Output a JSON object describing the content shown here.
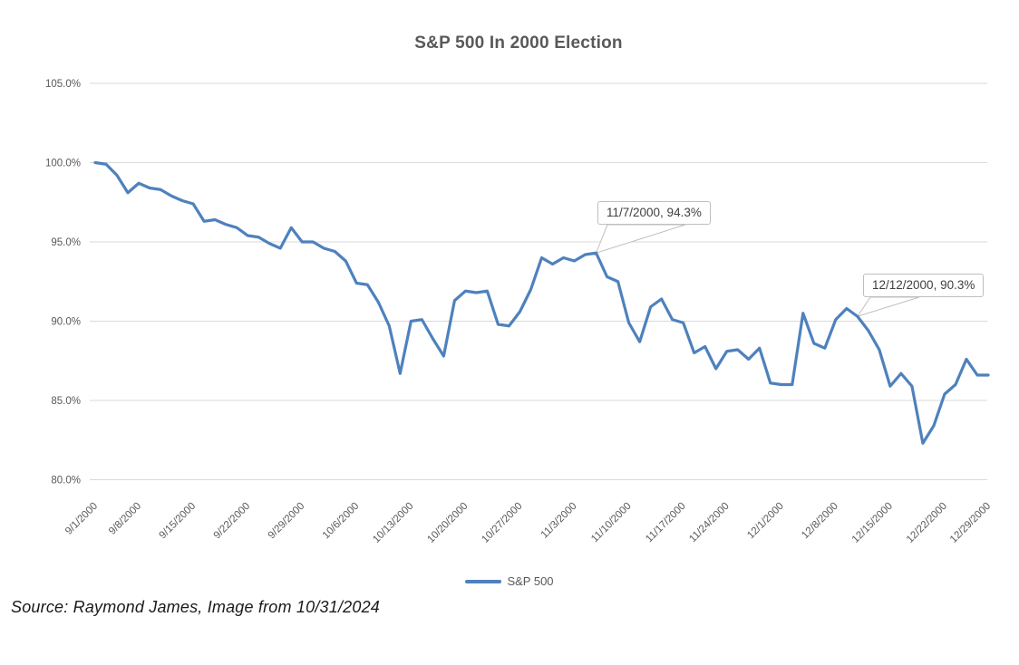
{
  "page": {
    "background": "#ffffff"
  },
  "source_note": "Source: Raymond James, Image from 10/31/2024",
  "chart_data": {
    "type": "line",
    "title": "S&P 500 In 2000 Election",
    "title_color": "#595959",
    "axis_label_color": "#595959",
    "gridline_color": "#D9D9D9",
    "callout_border_color": "#BFBFBF",
    "ylim": [
      80,
      105
    ],
    "y_tick_step": 5,
    "grid": "horizontal",
    "y_tick_labels": [
      "105.0%",
      "100.0%",
      "95.0%",
      "90.0%",
      "85.0%",
      "80.0%"
    ],
    "x_tick_labels": [
      "9/1/2000",
      "9/8/2000",
      "9/15/2000",
      "9/22/2000",
      "9/29/2000",
      "10/6/2000",
      "10/13/2000",
      "10/20/2000",
      "10/27/2000",
      "11/3/2000",
      "11/10/2000",
      "11/17/2000",
      "11/24/2000",
      "12/1/2000",
      "12/8/2000",
      "12/15/2000",
      "12/22/2000",
      "12/29/2000"
    ],
    "legend": {
      "position": "bottom",
      "label": "S&P 500"
    },
    "annotations": [
      {
        "date": "11/7/2000",
        "value": 94.3,
        "label": "11/7/2000, 94.3%"
      },
      {
        "date": "12/12/2000",
        "value": 90.3,
        "label": "12/12/2000, 90.3%"
      }
    ],
    "series": [
      {
        "name": "S&P 500",
        "color": "#4E81BD",
        "x": [
          "9/1/2000",
          "9/5/2000",
          "9/6/2000",
          "9/7/2000",
          "9/8/2000",
          "9/11/2000",
          "9/12/2000",
          "9/13/2000",
          "9/14/2000",
          "9/15/2000",
          "9/18/2000",
          "9/19/2000",
          "9/20/2000",
          "9/21/2000",
          "9/22/2000",
          "9/25/2000",
          "9/26/2000",
          "9/27/2000",
          "9/28/2000",
          "9/29/2000",
          "10/2/2000",
          "10/3/2000",
          "10/4/2000",
          "10/5/2000",
          "10/6/2000",
          "10/9/2000",
          "10/10/2000",
          "10/11/2000",
          "10/12/2000",
          "10/13/2000",
          "10/16/2000",
          "10/17/2000",
          "10/18/2000",
          "10/19/2000",
          "10/20/2000",
          "10/23/2000",
          "10/24/2000",
          "10/25/2000",
          "10/26/2000",
          "10/27/2000",
          "10/30/2000",
          "10/31/2000",
          "11/1/2000",
          "11/2/2000",
          "11/3/2000",
          "11/6/2000",
          "11/7/2000",
          "11/8/2000",
          "11/9/2000",
          "11/10/2000",
          "11/13/2000",
          "11/14/2000",
          "11/15/2000",
          "11/16/2000",
          "11/17/2000",
          "11/20/2000",
          "11/21/2000",
          "11/22/2000",
          "11/24/2000",
          "11/27/2000",
          "11/28/2000",
          "11/29/2000",
          "11/30/2000",
          "12/1/2000",
          "12/4/2000",
          "12/5/2000",
          "12/6/2000",
          "12/7/2000",
          "12/8/2000",
          "12/11/2000",
          "12/12/2000",
          "12/13/2000",
          "12/14/2000",
          "12/15/2000",
          "12/18/2000",
          "12/19/2000",
          "12/20/2000",
          "12/21/2000",
          "12/22/2000",
          "12/26/2000",
          "12/27/2000",
          "12/28/2000",
          "12/29/2000"
        ],
        "values": [
          100.0,
          99.9,
          99.2,
          98.1,
          98.7,
          98.4,
          98.3,
          97.9,
          97.6,
          97.4,
          96.3,
          96.4,
          96.1,
          95.9,
          95.4,
          95.3,
          94.9,
          94.6,
          95.9,
          95.0,
          95.0,
          94.6,
          94.4,
          93.8,
          92.4,
          92.3,
          91.2,
          89.7,
          86.7,
          90.0,
          90.1,
          88.9,
          87.8,
          91.3,
          91.9,
          91.8,
          91.9,
          89.8,
          89.7,
          90.6,
          92.0,
          94.0,
          93.6,
          94.0,
          93.8,
          94.2,
          94.3,
          92.8,
          92.5,
          89.9,
          88.7,
          90.9,
          91.4,
          90.1,
          89.9,
          88.0,
          88.4,
          87.0,
          88.1,
          88.2,
          87.6,
          88.3,
          86.1,
          86.0,
          86.0,
          90.5,
          88.6,
          88.3,
          90.1,
          90.8,
          90.3,
          89.4,
          88.2,
          85.9,
          86.7,
          85.9,
          82.3,
          83.4,
          85.4,
          86.0,
          87.6,
          86.6,
          86.6
        ]
      }
    ]
  }
}
